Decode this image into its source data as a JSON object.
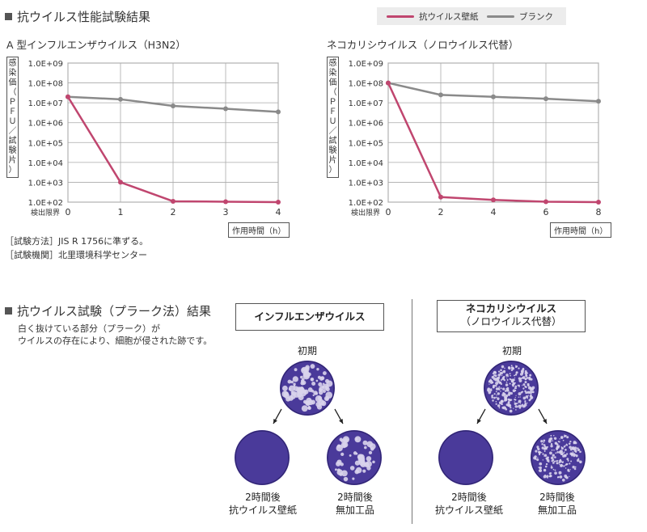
{
  "performance_section": {
    "title": "抗ウイルス性能試験結果",
    "legend": [
      {
        "label": "抗ウイルス壁紙",
        "color": "#c0466f"
      },
      {
        "label": "ブランク",
        "color": "#8a8a8a"
      }
    ],
    "y_axis_label_chars": [
      "感",
      "染",
      "価",
      "（",
      "Ｐ",
      "Ｆ",
      "Ｕ",
      "／",
      "試",
      "験",
      "片",
      "）"
    ],
    "y_tick_labels": [
      "1.0E+02",
      "1.0E+03",
      "1.0E+04",
      "1.0E+05",
      "1.0E+06",
      "1.0E+07",
      "1.0E+08",
      "1.0E+09"
    ],
    "detection_limit_label": "検出限界",
    "x_unit_label": "作用時間（h）",
    "method_note": "［試験方法］JIS R 1756に準ずる。",
    "lab_note": "［試験機関］北里環境科学センター"
  },
  "chart_data": [
    {
      "type": "line",
      "title": "A 型インフルエンザウイルス（H3N2）",
      "xlabel": "作用時間（h）",
      "ylabel": "感染価（PFU／試験片）",
      "yscale": "log",
      "ylim": [
        100,
        1000000000
      ],
      "xlim": [
        0,
        4
      ],
      "x": [
        0,
        1,
        2,
        3,
        4
      ],
      "x_ticks": [
        "0",
        "1",
        "2",
        "3",
        "4"
      ],
      "grid": true,
      "series": [
        {
          "name": "抗ウイルス壁紙",
          "color": "#c0466f",
          "values": [
            20000000,
            1000,
            110,
            105,
            100
          ]
        },
        {
          "name": "ブランク",
          "color": "#8a8a8a",
          "values": [
            20000000,
            15000000,
            7000000,
            5000000,
            3500000
          ]
        }
      ]
    },
    {
      "type": "line",
      "title": "ネコカリシウイルス（ノロウイルス代替）",
      "xlabel": "作用時間（h）",
      "ylabel": "感染価（PFU／試験片）",
      "yscale": "log",
      "ylim": [
        100,
        1000000000
      ],
      "xlim": [
        0,
        8
      ],
      "x": [
        0,
        2,
        4,
        6,
        8
      ],
      "x_ticks": [
        "0",
        "2",
        "4",
        "6",
        "8"
      ],
      "grid": true,
      "series": [
        {
          "name": "抗ウイルス壁紙",
          "color": "#c0466f",
          "values": [
            100000000,
            180,
            130,
            105,
            100
          ]
        },
        {
          "name": "ブランク",
          "color": "#8a8a8a",
          "values": [
            100000000,
            25000000,
            20000000,
            16000000,
            12000000
          ]
        }
      ]
    }
  ],
  "plaque_section": {
    "title": "抗ウイルス試験（プラーク法）結果",
    "desc_line1": "白く抜けている部分（プラーク）が",
    "desc_line2": "ウイルスの存在により、細胞が侵された跡です。",
    "groups": [
      {
        "box_line1": "インフルエンザウイルス",
        "box_line2": "",
        "initial": "初期",
        "left_line1": "2時間後",
        "left_line2": "抗ウイルス壁紙",
        "right_line1": "2時間後",
        "right_line2": "無加工品"
      },
      {
        "box_line1": "ネコカリシウイルス",
        "box_line2": "（ノロウイルス代替）",
        "initial": "初期",
        "left_line1": "2時間後",
        "left_line2": "抗ウイルス壁紙",
        "right_line1": "2時間後",
        "right_line2": "無加工品"
      }
    ]
  }
}
